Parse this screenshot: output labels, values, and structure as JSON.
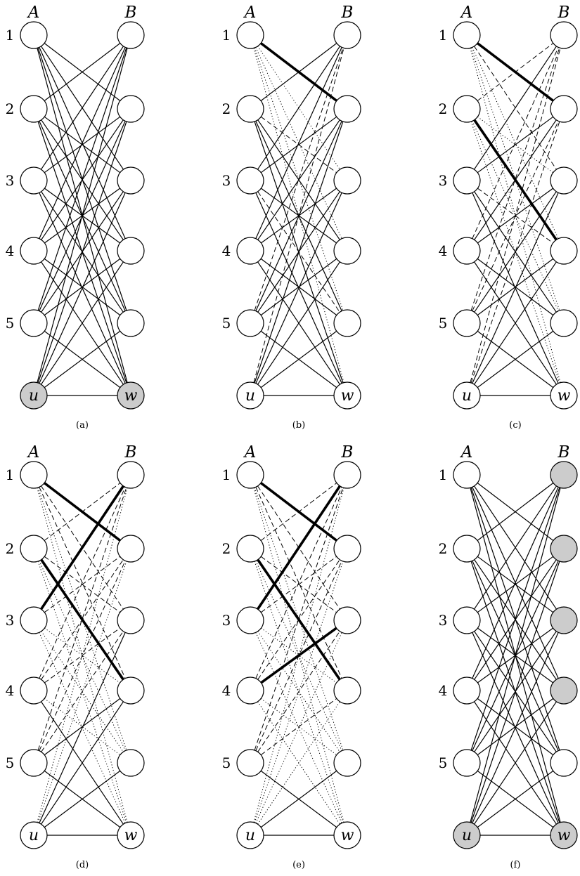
{
  "column_labels": [
    "A",
    "B"
  ],
  "row_labels": [
    "1",
    "2",
    "3",
    "4",
    "5"
  ],
  "bottom_labels": {
    "left": "u",
    "right": "w"
  },
  "colors": {
    "node_fill": "#ffffff",
    "shaded_fill": "#cccccc",
    "stroke": "#000000"
  },
  "panels": [
    {
      "caption": "(a)",
      "shaded": [
        "u",
        "w"
      ],
      "edges": [
        [
          "u",
          "w",
          "solid"
        ],
        [
          "A1",
          "B2",
          "solid"
        ],
        [
          "A1",
          "B3",
          "solid"
        ],
        [
          "A1",
          "B4",
          "solid"
        ],
        [
          "A1",
          "B5",
          "solid"
        ],
        [
          "A1",
          "w",
          "solid"
        ],
        [
          "A2",
          "B1",
          "solid"
        ],
        [
          "A2",
          "B3",
          "solid"
        ],
        [
          "A2",
          "B4",
          "solid"
        ],
        [
          "A2",
          "B5",
          "solid"
        ],
        [
          "A2",
          "w",
          "solid"
        ],
        [
          "A3",
          "B1",
          "solid"
        ],
        [
          "A3",
          "B2",
          "solid"
        ],
        [
          "A3",
          "B4",
          "solid"
        ],
        [
          "A3",
          "B5",
          "solid"
        ],
        [
          "A3",
          "w",
          "solid"
        ],
        [
          "A4",
          "B1",
          "solid"
        ],
        [
          "A4",
          "B2",
          "solid"
        ],
        [
          "A4",
          "B3",
          "solid"
        ],
        [
          "A4",
          "B5",
          "solid"
        ],
        [
          "A4",
          "w",
          "solid"
        ],
        [
          "A5",
          "B1",
          "solid"
        ],
        [
          "A5",
          "B2",
          "solid"
        ],
        [
          "A5",
          "B3",
          "solid"
        ],
        [
          "A5",
          "B4",
          "solid"
        ],
        [
          "A5",
          "w",
          "solid"
        ],
        [
          "u",
          "B1",
          "solid"
        ],
        [
          "u",
          "B2",
          "solid"
        ],
        [
          "u",
          "B3",
          "solid"
        ],
        [
          "u",
          "B4",
          "solid"
        ],
        [
          "u",
          "B5",
          "solid"
        ]
      ]
    },
    {
      "caption": "(b)",
      "shaded": [],
      "edges": [
        [
          "u",
          "w",
          "solid"
        ],
        [
          "A1",
          "B2",
          "bold"
        ],
        [
          "A1",
          "B3",
          "dotted"
        ],
        [
          "A1",
          "B4",
          "dotted"
        ],
        [
          "A1",
          "B5",
          "dotted"
        ],
        [
          "A1",
          "w",
          "dotted"
        ],
        [
          "A2",
          "B1",
          "solid"
        ],
        [
          "A2",
          "B3",
          "dashed"
        ],
        [
          "A2",
          "B4",
          "solid"
        ],
        [
          "A2",
          "B5",
          "solid"
        ],
        [
          "A2",
          "w",
          "solid"
        ],
        [
          "A3",
          "B1",
          "solid"
        ],
        [
          "A3",
          "B2",
          "solid"
        ],
        [
          "A3",
          "B4",
          "solid"
        ],
        [
          "A3",
          "B5",
          "dashed"
        ],
        [
          "A3",
          "w",
          "solid"
        ],
        [
          "A4",
          "B1",
          "solid"
        ],
        [
          "A4",
          "B2",
          "solid"
        ],
        [
          "A4",
          "B3",
          "solid"
        ],
        [
          "A4",
          "B5",
          "solid"
        ],
        [
          "A4",
          "w",
          "solid"
        ],
        [
          "A5",
          "B1",
          "dashed"
        ],
        [
          "A5",
          "B2",
          "solid"
        ],
        [
          "A5",
          "B3",
          "solid"
        ],
        [
          "A5",
          "B4",
          "solid"
        ],
        [
          "A5",
          "w",
          "solid"
        ],
        [
          "u",
          "B1",
          "dashed"
        ],
        [
          "u",
          "B2",
          "solid"
        ],
        [
          "u",
          "B3",
          "solid"
        ],
        [
          "u",
          "B4",
          "solid"
        ],
        [
          "u",
          "B5",
          "solid"
        ]
      ]
    },
    {
      "caption": "(c)",
      "shaded": [],
      "edges": [
        [
          "u",
          "w",
          "solid"
        ],
        [
          "A1",
          "B2",
          "bold"
        ],
        [
          "A1",
          "B3",
          "dashed"
        ],
        [
          "A1",
          "B4",
          "dotted"
        ],
        [
          "A1",
          "B5",
          "dotted"
        ],
        [
          "A1",
          "w",
          "dotted"
        ],
        [
          "A2",
          "B1",
          "dashed"
        ],
        [
          "A2",
          "B3",
          "dotted"
        ],
        [
          "A2",
          "B4",
          "bold"
        ],
        [
          "A2",
          "B5",
          "dotted"
        ],
        [
          "A2",
          "w",
          "dotted"
        ],
        [
          "A3",
          "B1",
          "solid"
        ],
        [
          "A3",
          "B2",
          "solid"
        ],
        [
          "A3",
          "B4",
          "dashed"
        ],
        [
          "A3",
          "B5",
          "solid"
        ],
        [
          "A3",
          "w",
          "solid"
        ],
        [
          "A4",
          "B1",
          "dashed"
        ],
        [
          "A4",
          "B2",
          "solid"
        ],
        [
          "A4",
          "B3",
          "solid"
        ],
        [
          "A4",
          "B5",
          "solid"
        ],
        [
          "A4",
          "w",
          "solid"
        ],
        [
          "A5",
          "B1",
          "dashed"
        ],
        [
          "A5",
          "B2",
          "dashed"
        ],
        [
          "A5",
          "B3",
          "solid"
        ],
        [
          "A5",
          "B4",
          "solid"
        ],
        [
          "A5",
          "w",
          "solid"
        ],
        [
          "u",
          "B1",
          "dashed"
        ],
        [
          "u",
          "B2",
          "dashed"
        ],
        [
          "u",
          "B3",
          "solid"
        ],
        [
          "u",
          "B4",
          "solid"
        ],
        [
          "u",
          "B5",
          "solid"
        ]
      ]
    },
    {
      "caption": "(d)",
      "shaded": [],
      "edges": [
        [
          "u",
          "w",
          "solid"
        ],
        [
          "A1",
          "B2",
          "bold"
        ],
        [
          "A1",
          "B3",
          "dashed"
        ],
        [
          "A1",
          "B4",
          "dashed"
        ],
        [
          "A1",
          "B5",
          "dotted"
        ],
        [
          "A1",
          "w",
          "dotted"
        ],
        [
          "A2",
          "B1",
          "dashed"
        ],
        [
          "A2",
          "B3",
          "dashed"
        ],
        [
          "A2",
          "B4",
          "bold"
        ],
        [
          "A2",
          "B5",
          "dotted"
        ],
        [
          "A2",
          "w",
          "dotted"
        ],
        [
          "A3",
          "B1",
          "bold"
        ],
        [
          "A3",
          "B2",
          "dashed"
        ],
        [
          "A3",
          "B4",
          "dotted"
        ],
        [
          "A3",
          "B5",
          "dotted"
        ],
        [
          "A3",
          "w",
          "dotted"
        ],
        [
          "A4",
          "B1",
          "dashed"
        ],
        [
          "A4",
          "B2",
          "dashed"
        ],
        [
          "A4",
          "B3",
          "dashed"
        ],
        [
          "A4",
          "B5",
          "dotted"
        ],
        [
          "A4",
          "w",
          "solid"
        ],
        [
          "A5",
          "B1",
          "dashed"
        ],
        [
          "A5",
          "B2",
          "dashed"
        ],
        [
          "A5",
          "B3",
          "dashed"
        ],
        [
          "A5",
          "B4",
          "solid"
        ],
        [
          "A5",
          "w",
          "solid"
        ],
        [
          "u",
          "B1",
          "dotted"
        ],
        [
          "u",
          "B2",
          "dotted"
        ],
        [
          "u",
          "B3",
          "solid"
        ],
        [
          "u",
          "B4",
          "solid"
        ],
        [
          "u",
          "B5",
          "solid"
        ]
      ]
    },
    {
      "caption": "(e)",
      "shaded": [],
      "edges": [
        [
          "u",
          "w",
          "solid"
        ],
        [
          "A1",
          "B2",
          "bold"
        ],
        [
          "A1",
          "B3",
          "dashed"
        ],
        [
          "A1",
          "B4",
          "dashed"
        ],
        [
          "A1",
          "B5",
          "dotted"
        ],
        [
          "A1",
          "w",
          "dotted"
        ],
        [
          "A2",
          "B1",
          "dashed"
        ],
        [
          "A2",
          "B3",
          "dashed"
        ],
        [
          "A2",
          "B4",
          "bold"
        ],
        [
          "A2",
          "B5",
          "dotted"
        ],
        [
          "A2",
          "w",
          "dotted"
        ],
        [
          "A3",
          "B1",
          "bold"
        ],
        [
          "A3",
          "B2",
          "dashed"
        ],
        [
          "A3",
          "B4",
          "dotted"
        ],
        [
          "A3",
          "B5",
          "dotted"
        ],
        [
          "A3",
          "w",
          "dotted"
        ],
        [
          "A4",
          "B1",
          "dashed"
        ],
        [
          "A4",
          "B2",
          "dashed"
        ],
        [
          "A4",
          "B3",
          "bold"
        ],
        [
          "A4",
          "B5",
          "dotted"
        ],
        [
          "A4",
          "w",
          "dotted"
        ],
        [
          "A5",
          "B1",
          "dashed"
        ],
        [
          "A5",
          "B2",
          "dashed"
        ],
        [
          "A5",
          "B3",
          "dashed"
        ],
        [
          "A5",
          "B4",
          "dashed"
        ],
        [
          "A5",
          "w",
          "solid"
        ],
        [
          "u",
          "B1",
          "dotted"
        ],
        [
          "u",
          "B2",
          "dotted"
        ],
        [
          "u",
          "B3",
          "dotted"
        ],
        [
          "u",
          "B4",
          "dotted"
        ],
        [
          "u",
          "B5",
          "solid"
        ]
      ]
    },
    {
      "caption": "(f)",
      "shaded": [
        "u",
        "w",
        "B1",
        "B2",
        "B3",
        "B4"
      ],
      "edges": [
        [
          "u",
          "w",
          "solid"
        ],
        [
          "A1",
          "B2",
          "solid"
        ],
        [
          "A1",
          "B3",
          "solid"
        ],
        [
          "A1",
          "B4",
          "solid"
        ],
        [
          "A1",
          "B5",
          "solid"
        ],
        [
          "A1",
          "w",
          "solid"
        ],
        [
          "A2",
          "B1",
          "solid"
        ],
        [
          "A2",
          "B3",
          "solid"
        ],
        [
          "A2",
          "B4",
          "solid"
        ],
        [
          "A2",
          "B5",
          "solid"
        ],
        [
          "A2",
          "w",
          "solid"
        ],
        [
          "A3",
          "B1",
          "solid"
        ],
        [
          "A3",
          "B2",
          "solid"
        ],
        [
          "A3",
          "B4",
          "solid"
        ],
        [
          "A3",
          "B5",
          "solid"
        ],
        [
          "A3",
          "w",
          "solid"
        ],
        [
          "A4",
          "B1",
          "solid"
        ],
        [
          "A4",
          "B2",
          "solid"
        ],
        [
          "A4",
          "B3",
          "solid"
        ],
        [
          "A4",
          "B5",
          "solid"
        ],
        [
          "A4",
          "w",
          "solid"
        ],
        [
          "A5",
          "B1",
          "solid"
        ],
        [
          "A5",
          "B2",
          "solid"
        ],
        [
          "A5",
          "B3",
          "solid"
        ],
        [
          "A5",
          "B4",
          "solid"
        ],
        [
          "A5",
          "w",
          "solid"
        ],
        [
          "u",
          "B1",
          "solid"
        ],
        [
          "u",
          "B2",
          "solid"
        ],
        [
          "u",
          "B3",
          "solid"
        ],
        [
          "u",
          "B4",
          "solid"
        ],
        [
          "u",
          "B5",
          "solid"
        ]
      ]
    }
  ]
}
